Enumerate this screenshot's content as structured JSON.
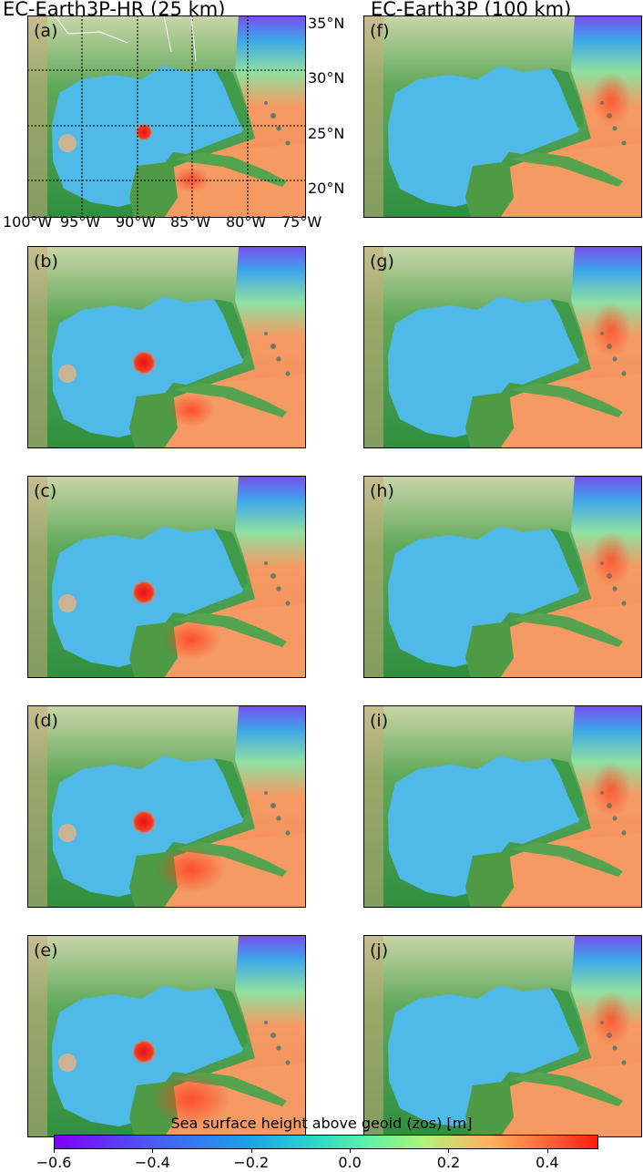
{
  "titles": {
    "left": "EC-Earth3P-HR (25 km)",
    "right": "EC-Earth3P (100 km)"
  },
  "panels": [
    {
      "label": "(a)",
      "model": "hr"
    },
    {
      "label": "(b)",
      "model": "hr"
    },
    {
      "label": "(c)",
      "model": "hr"
    },
    {
      "label": "(d)",
      "model": "hr"
    },
    {
      "label": "(e)",
      "model": "hr"
    },
    {
      "label": "(f)",
      "model": "lr"
    },
    {
      "label": "(g)",
      "model": "lr"
    },
    {
      "label": "(h)",
      "model": "lr"
    },
    {
      "label": "(i)",
      "model": "lr"
    },
    {
      "label": "(j)",
      "model": "lr"
    }
  ],
  "axes": {
    "lat_labels": [
      "35°N",
      "30°N",
      "25°N",
      "20°N"
    ],
    "lon_labels": [
      "100°W",
      "95°W",
      "90°W",
      "85°W",
      "80°W",
      "75°W"
    ]
  },
  "colorbar": {
    "label": "Sea surface height above geoid (zos) [m]",
    "min": -0.6,
    "max": 0.5,
    "ticks": [
      "−0.6",
      "−0.4",
      "−0.2",
      "0.0",
      "0.2",
      "0.4"
    ],
    "colors": {
      "low": "#7f00ff",
      "mid": "#2dd8c9",
      "high": "#ff1b10"
    }
  },
  "colors": {
    "land": "#2f8f3f",
    "gulf_water": "#4fb9e8",
    "atlantic_water": "#f59a63",
    "eddy": "#f0401f"
  }
}
